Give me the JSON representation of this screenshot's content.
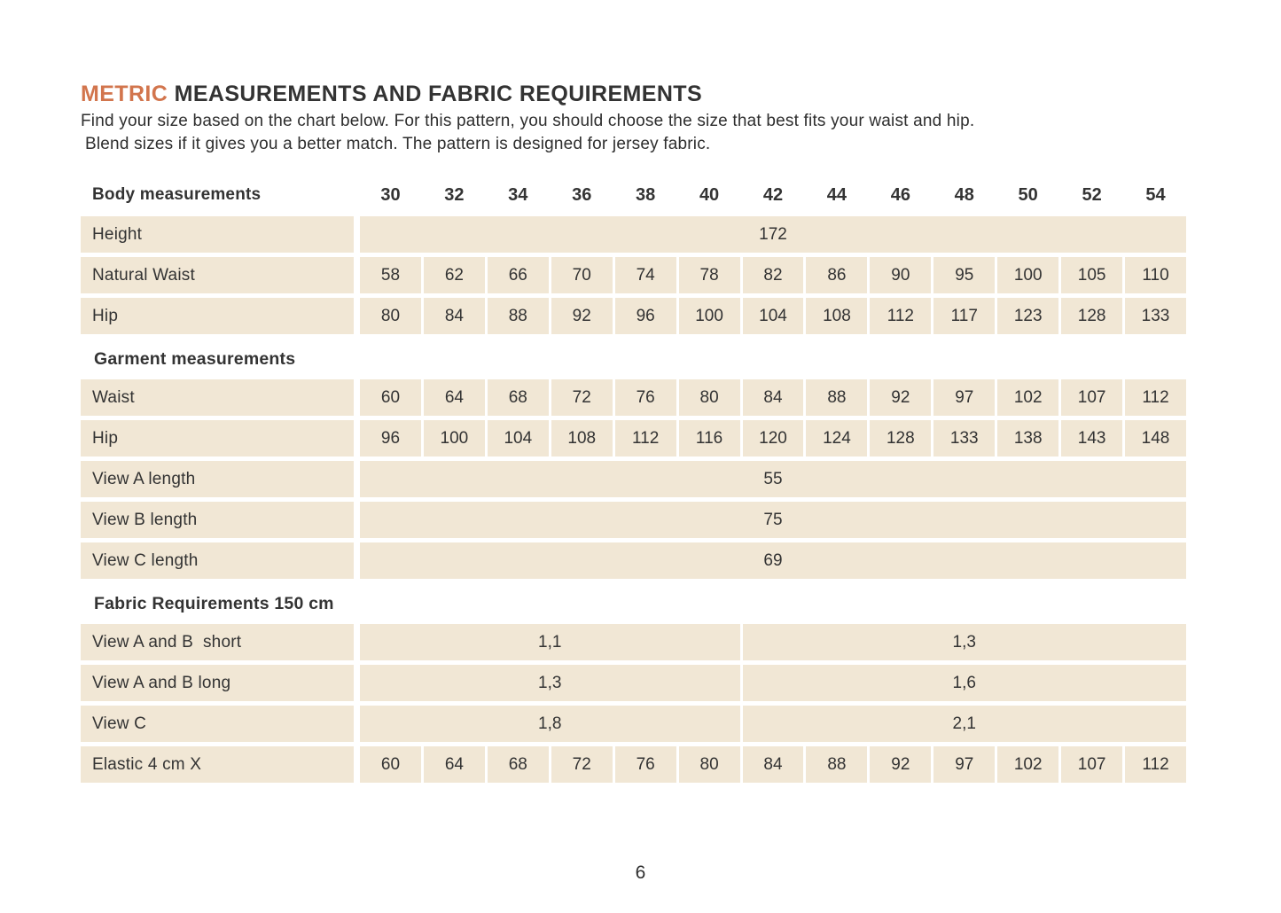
{
  "page": {
    "title_accent": "METRIC",
    "title_rest": "MEASUREMENTS AND FABRIC REQUIREMENTS",
    "subtitle_line1": "Find your size based on the chart below. For this pattern, you should choose the size that best fits your waist and hip.",
    "subtitle_line2": "Blend sizes if it gives you a better match.  The pattern is designed for jersey fabric.",
    "page_number": "6"
  },
  "colors": {
    "accent_orange": "#d2754d",
    "row_background": "#f1e7d5",
    "text": "#333333",
    "page_background": "#ffffff"
  },
  "table": {
    "header_label": "Body measurements",
    "sizes": [
      "30",
      "32",
      "34",
      "36",
      "38",
      "40",
      "42",
      "44",
      "46",
      "48",
      "50",
      "52",
      "54"
    ],
    "rows": [
      {
        "type": "full",
        "label": "Height",
        "value": "172"
      },
      {
        "type": "cells",
        "label": "Natural Waist",
        "values": [
          "58",
          "62",
          "66",
          "70",
          "74",
          "78",
          "82",
          "86",
          "90",
          "95",
          "100",
          "105",
          "110"
        ]
      },
      {
        "type": "cells",
        "label": "Hip",
        "values": [
          "80",
          "84",
          "88",
          "92",
          "96",
          "100",
          "104",
          "108",
          "112",
          "117",
          "123",
          "128",
          "133"
        ]
      },
      {
        "type": "section",
        "label": "Garment measurements"
      },
      {
        "type": "cells",
        "label": "Waist",
        "values": [
          "60",
          "64",
          "68",
          "72",
          "76",
          "80",
          "84",
          "88",
          "92",
          "97",
          "102",
          "107",
          "112"
        ]
      },
      {
        "type": "cells",
        "label": "Hip",
        "values": [
          "96",
          "100",
          "104",
          "108",
          "112",
          "116",
          "120",
          "124",
          "128",
          "133",
          "138",
          "143",
          "148"
        ]
      },
      {
        "type": "full",
        "label": "View A length",
        "value": "55"
      },
      {
        "type": "full",
        "label": "View B length",
        "value": "75"
      },
      {
        "type": "full",
        "label": "View C length",
        "value": "69"
      },
      {
        "type": "section",
        "label": "Fabric Requirements 150 cm"
      },
      {
        "type": "split",
        "label": "View A and B  short",
        "values": [
          "1,1",
          "1,3"
        ]
      },
      {
        "type": "split",
        "label": "View A and B long",
        "values": [
          "1,3",
          "1,6"
        ]
      },
      {
        "type": "split",
        "label": "View C",
        "values": [
          "1,8",
          "2,1"
        ]
      },
      {
        "type": "cells",
        "label": "Elastic 4 cm X",
        "values": [
          "60",
          "64",
          "68",
          "72",
          "76",
          "80",
          "84",
          "88",
          "92",
          "97",
          "102",
          "107",
          "112"
        ]
      }
    ]
  }
}
